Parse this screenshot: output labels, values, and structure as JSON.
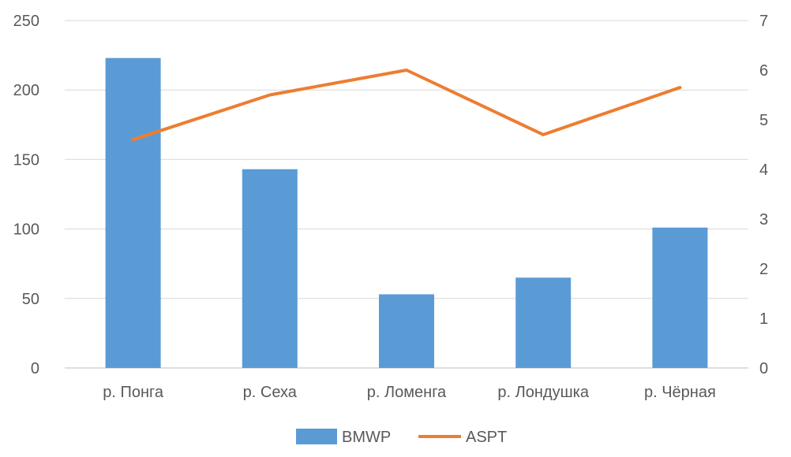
{
  "chart_data": {
    "type": "bar",
    "categories": [
      "р. Понга",
      "р. Сеха",
      "р. Ломенга",
      "р. Лондушка",
      "р. Чёрная"
    ],
    "series": [
      {
        "name": "BMWP",
        "type": "bar",
        "axis": "left",
        "color": "#5b9bd5",
        "values": [
          223,
          143,
          53,
          65,
          101
        ]
      },
      {
        "name": "ASPT",
        "type": "line",
        "axis": "right",
        "color": "#ed7d31",
        "values": [
          4.6,
          5.5,
          6.0,
          4.7,
          5.65
        ]
      }
    ],
    "ylim": [
      0,
      250
    ],
    "y_ticks": [
      "0",
      "50",
      "100",
      "150",
      "200",
      "250"
    ],
    "y2lim": [
      0,
      7
    ],
    "y2_ticks": [
      "0",
      "1",
      "2",
      "3",
      "4",
      "5",
      "6",
      "7"
    ],
    "grid": true,
    "legend": "bottom"
  }
}
